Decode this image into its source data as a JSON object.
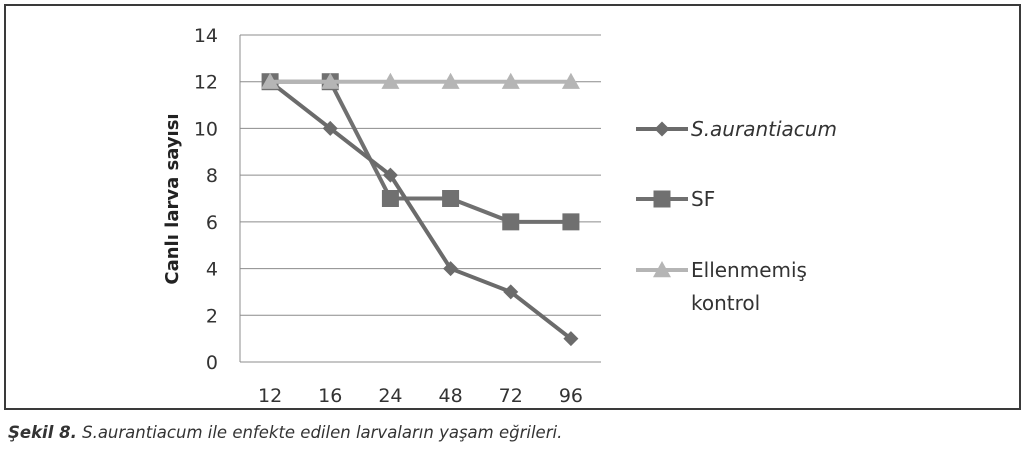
{
  "chart_data": {
    "type": "line",
    "categories": [
      "12",
      "16",
      "24",
      "48",
      "72",
      "96"
    ],
    "ylabel": "Canlı larva sayısı",
    "ylim": [
      0,
      14
    ],
    "yticks": [
      "0",
      "2",
      "4",
      "6",
      "8",
      "10",
      "12",
      "14"
    ],
    "grid": true,
    "legend_position": "right",
    "series": [
      {
        "name": "S.aurantiacum",
        "values": [
          12,
          10,
          8,
          4,
          3,
          1
        ],
        "marker": "diamond",
        "color": "#6b6b6b"
      },
      {
        "name": "SF",
        "values": [
          12,
          12,
          7,
          7,
          6,
          6
        ],
        "marker": "square",
        "color": "#707070"
      },
      {
        "name": "Ellenmemiş kontrol",
        "name_lines": [
          "Ellenmemiş",
          "kontrol"
        ],
        "values": [
          12,
          12,
          12,
          12,
          12,
          12
        ],
        "marker": "triangle",
        "color": "#b5b5b5"
      }
    ]
  },
  "caption": {
    "label": "Şekil 8.",
    "text": " S.aurantiacum ile enfekte edilen larvaların yaşam eğrileri."
  }
}
